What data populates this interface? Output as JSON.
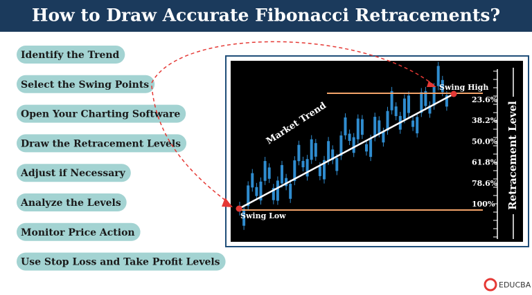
{
  "header": {
    "title": "How to Draw Accurate Fibonacci Retracements?"
  },
  "steps": [
    "Identify the Trend",
    "Select the Swing Points",
    "Open Your Charting Software",
    "Draw the Retracement Levels",
    "Adjust if Necessary",
    "Analyze the Levels",
    "Monitor Price Action",
    "Use Stop Loss and Take Profit Levels"
  ],
  "illustration": {
    "trend_label": "Market Trend",
    "swing_high": "Swing High",
    "swing_low": "Swing Low",
    "levels": [
      "23.6%",
      "38.2%",
      "50.0%",
      "61.8%",
      "78.6%",
      "100%"
    ],
    "axis_label": "Retracement Level"
  },
  "brand": "EDUCBA"
}
